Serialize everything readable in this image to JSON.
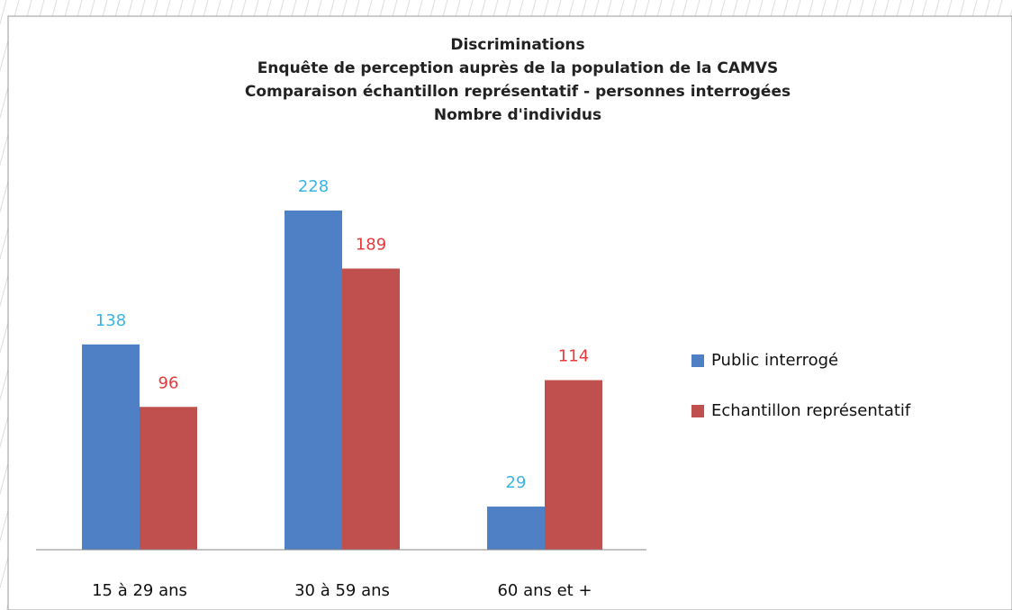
{
  "chart_data": {
    "type": "bar",
    "title": [
      "Discriminations",
      "Enquête de perception auprès de la population de la CAMVS",
      "Comparaison échantillon représentatif - personnes interrogées",
      "Nombre d'individus"
    ],
    "categories": [
      "15 à 29 ans",
      "30 à 59 ans",
      "60 ans et +"
    ],
    "series": [
      {
        "name": "Public interrogé",
        "color": "#4f7fc4",
        "label_color": "#3ab4e6",
        "values": [
          138,
          228,
          29
        ]
      },
      {
        "name": "Echantillon représentatif",
        "color": "#c0504d",
        "label_color": "#e8393c",
        "values": [
          96,
          189,
          114
        ]
      }
    ],
    "legend": "right"
  }
}
